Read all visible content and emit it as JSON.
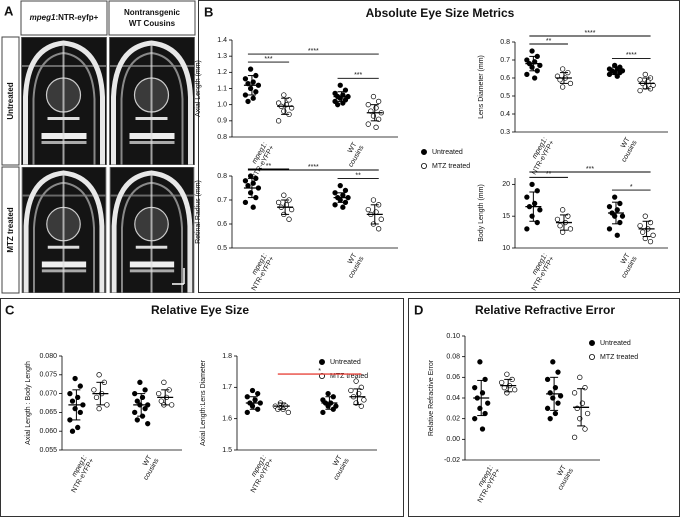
{
  "figure": {
    "panel_a": {
      "letter": "A",
      "columns": [
        [
          "mpeg1",
          ":NTR-eyfp+"
        ],
        [
          "Nontransgenic",
          "WT Cousins"
        ]
      ],
      "rows": [
        "Untreated",
        "MTZ treated"
      ]
    },
    "panels": [
      {
        "letter": "B",
        "title": "Absolute Eye Size Metrics",
        "legend": [
          "Untreated",
          "MTZ treated"
        ]
      },
      {
        "letter": "C",
        "title": "Relative Eye Size",
        "legend": [
          "Untreated",
          "MTZ treated"
        ]
      },
      {
        "letter": "D",
        "title": "Relative Refractive Error",
        "legend": [
          "Untreated",
          "MTZ treated"
        ]
      }
    ]
  },
  "chart_data": [
    {
      "type": "scatter",
      "ylabel": "Axial Length (mm)",
      "categories": [
        [
          "mpeg1:",
          "NTR-eYFP+"
        ],
        [
          "WT",
          "cousins"
        ]
      ],
      "ylim": [
        0.8,
        1.4
      ],
      "yticks": [
        0.8,
        0.9,
        {
          "value": 1,
          "label": "1.0"
        },
        1.1,
        1.2,
        1.3,
        1.4
      ],
      "series": [
        {
          "fill": "#000000",
          "values": [
            [
              1.22,
              1.18,
              1.16,
              1.14,
              1.13,
              1.12,
              1.1,
              1.08,
              1.06,
              1.04,
              1.02
            ],
            [
              1.12,
              1.09,
              1.07,
              1.06,
              1.05,
              1.05,
              1.04,
              1.03,
              1.02,
              1.01,
              1.0
            ]
          ],
          "mean": [
            1.12,
            1.05
          ],
          "sd": [
            0.06,
            0.03
          ]
        },
        {
          "fill": "#ffffff",
          "values": [
            [
              1.06,
              1.03,
              1.01,
              1.0,
              0.99,
              0.98,
              0.96,
              0.94,
              0.9
            ],
            [
              1.05,
              1.02,
              1.0,
              0.98,
              0.96,
              0.95,
              0.93,
              0.91,
              0.88,
              0.86
            ]
          ],
          "mean": [
            0.99,
            0.95
          ],
          "sd": [
            0.05,
            0.05
          ]
        }
      ],
      "annotations": [
        {
          "groups": [
            0,
            1
          ],
          "label": "***"
        },
        {
          "groups": [
            0,
            3
          ],
          "label": "****"
        },
        {
          "groups": [
            2,
            3
          ],
          "label": "***"
        }
      ]
    },
    {
      "type": "scatter",
      "ylabel": "Lens Diameter (mm)",
      "categories": [
        [
          "mpeg1:",
          "NTR-eYFP+"
        ],
        [
          "WT",
          "cousins"
        ]
      ],
      "ylim": [
        0.3,
        0.8
      ],
      "yticks": [
        0.3,
        0.4,
        0.5,
        0.6,
        0.7,
        0.8
      ],
      "series": [
        {
          "fill": "#000000",
          "values": [
            [
              0.75,
              0.72,
              0.7,
              0.69,
              0.68,
              0.67,
              0.66,
              0.64,
              0.62,
              0.6
            ],
            [
              0.67,
              0.66,
              0.65,
              0.65,
              0.64,
              0.64,
              0.63,
              0.63,
              0.62,
              0.61
            ]
          ],
          "mean": [
            0.68,
            0.64
          ],
          "sd": [
            0.04,
            0.02
          ]
        },
        {
          "fill": "#ffffff",
          "values": [
            [
              0.65,
              0.63,
              0.61,
              0.6,
              0.59,
              0.57,
              0.55
            ],
            [
              0.62,
              0.6,
              0.59,
              0.58,
              0.57,
              0.56,
              0.55,
              0.54,
              0.53
            ]
          ],
          "mean": [
            0.6,
            0.57
          ],
          "sd": [
            0.03,
            0.03
          ]
        }
      ],
      "annotations": [
        {
          "groups": [
            0,
            1
          ],
          "label": "**"
        },
        {
          "groups": [
            0,
            3
          ],
          "label": "****"
        },
        {
          "groups": [
            2,
            3
          ],
          "label": "****"
        }
      ]
    },
    {
      "type": "scatter",
      "ylabel": "Retinal Radius (mm)",
      "categories": [
        [
          "mpeg1:",
          "NTR-eYFP+"
        ],
        [
          "WT",
          "cousins"
        ]
      ],
      "ylim": [
        0.5,
        0.8
      ],
      "yticks": [
        0.5,
        0.6,
        0.7,
        0.8
      ],
      "series": [
        {
          "fill": "#000000",
          "values": [
            [
              0.8,
              0.79,
              0.78,
              0.77,
              0.76,
              0.75,
              0.73,
              0.71,
              0.69,
              0.67
            ],
            [
              0.76,
              0.74,
              0.73,
              0.72,
              0.71,
              0.71,
              0.7,
              0.69,
              0.68,
              0.67
            ]
          ],
          "mean": [
            0.75,
            0.71
          ],
          "sd": [
            0.04,
            0.02
          ]
        },
        {
          "fill": "#ffffff",
          "values": [
            [
              0.72,
              0.7,
              0.69,
              0.68,
              0.67,
              0.66,
              0.64,
              0.62
            ],
            [
              0.7,
              0.68,
              0.66,
              0.65,
              0.64,
              0.62,
              0.6,
              0.58
            ]
          ],
          "mean": [
            0.67,
            0.64
          ],
          "sd": [
            0.03,
            0.04
          ]
        }
      ],
      "annotations": [
        {
          "groups": [
            0,
            1
          ],
          "label": "**"
        },
        {
          "groups": [
            0,
            3
          ],
          "label": "****"
        },
        {
          "groups": [
            2,
            3
          ],
          "label": "**"
        }
      ]
    },
    {
      "type": "scatter",
      "ylabel": "Body Length (mm)",
      "categories": [
        [
          "mpeg1:",
          "NTR-eYFP+"
        ],
        [
          "WT",
          "cousins"
        ]
      ],
      "ylim": [
        10,
        21
      ],
      "yticks": [
        10,
        15,
        20
      ],
      "series": [
        {
          "fill": "#000000",
          "values": [
            [
              20,
              19,
              18,
              17,
              16.5,
              16,
              15,
              14,
              13
            ],
            [
              18,
              17,
              16.5,
              16,
              15.5,
              15,
              15,
              14,
              13,
              12
            ]
          ],
          "mean": [
            16.5,
            15.5
          ],
          "sd": [
            2.3,
            1.7
          ]
        },
        {
          "fill": "#ffffff",
          "values": [
            [
              16,
              15,
              14.5,
              14,
              13.5,
              13,
              12.5
            ],
            [
              15,
              14,
              13.5,
              13,
              12.5,
              12,
              11.5,
              11
            ]
          ],
          "mean": [
            14,
            13
          ],
          "sd": [
            1.2,
            1.2
          ]
        }
      ],
      "annotations": [
        {
          "groups": [
            0,
            1
          ],
          "label": "**"
        },
        {
          "groups": [
            0,
            3
          ],
          "label": "***"
        },
        {
          "groups": [
            2,
            3
          ],
          "label": "*"
        }
      ]
    },
    {
      "type": "scatter",
      "ylabel": "Axial Length : Body Length",
      "categories": [
        [
          "mpeg1:",
          "NTR-eYFP+"
        ],
        [
          "WT",
          "cousins"
        ]
      ],
      "ylim": [
        0.055,
        0.08
      ],
      "yticks": [
        0.055,
        {
          "value": 0.06,
          "label": "0.060"
        },
        0.065,
        {
          "value": 0.07,
          "label": "0.070"
        },
        0.075,
        {
          "value": 0.08,
          "label": "0.080"
        }
      ],
      "series": [
        {
          "fill": "#000000",
          "values": [
            [
              0.074,
              0.072,
              0.07,
              0.069,
              0.068,
              0.067,
              0.066,
              0.065,
              0.063,
              0.061,
              0.06
            ],
            [
              0.073,
              0.071,
              0.07,
              0.069,
              0.068,
              0.067,
              0.067,
              0.066,
              0.065,
              0.064,
              0.063,
              0.062
            ]
          ],
          "mean": [
            0.067,
            0.067
          ],
          "sd": [
            0.004,
            0.003
          ]
        },
        {
          "fill": "#ffffff",
          "values": [
            [
              0.075,
              0.073,
              0.071,
              0.07,
              0.069,
              0.067,
              0.066
            ],
            [
              0.073,
              0.071,
              0.07,
              0.069,
              0.068,
              0.067,
              0.067
            ]
          ],
          "mean": [
            0.07,
            0.069
          ],
          "sd": [
            0.003,
            0.002
          ]
        }
      ],
      "annotations": []
    },
    {
      "type": "scatter",
      "ylabel": "Axial Length:Lens Diameter",
      "categories": [
        [
          "mpeg1:",
          "NTR-eYFP+"
        ],
        [
          "WT",
          "cousins"
        ]
      ],
      "ylim": [
        1.5,
        1.8
      ],
      "yticks": [
        1.5,
        1.6,
        1.7,
        1.8
      ],
      "series": [
        {
          "fill": "#000000",
          "values": [
            [
              1.69,
              1.68,
              1.67,
              1.66,
              1.65,
              1.65,
              1.64,
              1.63,
              1.62
            ],
            [
              1.68,
              1.67,
              1.66,
              1.65,
              1.65,
              1.64,
              1.64,
              1.63,
              1.62
            ]
          ],
          "mean": [
            1.65,
            1.65
          ],
          "sd": [
            0.02,
            0.02
          ]
        },
        {
          "fill": "#ffffff",
          "values": [
            [
              1.65,
              1.64,
              1.64,
              1.63,
              1.63,
              1.62
            ],
            [
              1.72,
              1.7,
              1.69,
              1.68,
              1.67,
              1.66,
              1.65,
              1.64
            ]
          ],
          "mean": [
            1.64,
            1.67
          ],
          "sd": [
            0.01,
            0.025
          ]
        }
      ],
      "annotations": [
        {
          "groups": [
            1,
            3
          ],
          "label": "*",
          "color": "#e8473f"
        }
      ]
    },
    {
      "type": "scatter",
      "ylabel": "Relative Refractive Error",
      "categories": [
        [
          "mpeg1:",
          "NTR-eYFP+"
        ],
        [
          "WT",
          "cousins"
        ]
      ],
      "ylim": [
        -0.02,
        0.1
      ],
      "yticks": [
        -0.02,
        {
          "value": 0,
          "label": "0.00"
        },
        0.02,
        0.04,
        0.06,
        0.08,
        {
          "value": 0.1,
          "label": "0.10"
        }
      ],
      "series": [
        {
          "fill": "#000000",
          "values": [
            [
              0.075,
              0.058,
              0.05,
              0.045,
              0.04,
              0.035,
              0.03,
              0.025,
              0.02,
              0.01
            ],
            [
              0.075,
              0.065,
              0.058,
              0.05,
              0.045,
              0.042,
              0.04,
              0.035,
              0.03,
              0.025,
              0.02
            ]
          ],
          "mean": [
            0.04,
            0.044
          ],
          "sd": [
            0.017,
            0.016
          ]
        },
        {
          "fill": "#ffffff",
          "values": [
            [
              0.063,
              0.058,
              0.055,
              0.052,
              0.05,
              0.048,
              0.045
            ],
            [
              0.06,
              0.05,
              0.045,
              0.035,
              0.03,
              0.025,
              0.02,
              0.01,
              0.002
            ]
          ],
          "mean": [
            0.052,
            0.031
          ],
          "sd": [
            0.006,
            0.018
          ]
        }
      ],
      "annotations": []
    }
  ]
}
